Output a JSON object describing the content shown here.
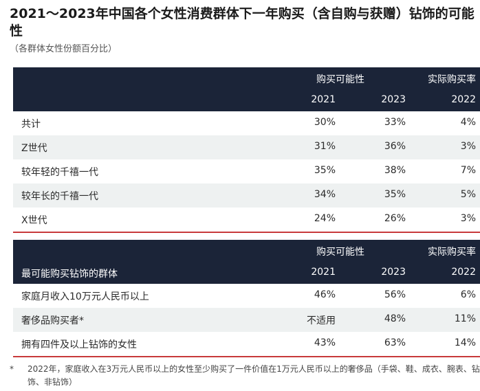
{
  "title": "2021～2023年中国各个女性消费群体下一年购买（含自购与获赠）钻饰的可能性",
  "subtitle": "（各群体女性份额百分比）",
  "table1": {
    "group_headers": [
      "购买可能性",
      "实际购买率"
    ],
    "first_col_header": "",
    "columns": [
      "2021",
      "2023",
      "2022"
    ],
    "rows": [
      {
        "label": "共计",
        "v": [
          "30%",
          "33%",
          "4%"
        ]
      },
      {
        "label": "Z世代",
        "v": [
          "31%",
          "36%",
          "3%"
        ]
      },
      {
        "label": "较年轻的千禧一代",
        "v": [
          "35%",
          "38%",
          "7%"
        ]
      },
      {
        "label": "较年长的千禧一代",
        "v": [
          "34%",
          "35%",
          "5%"
        ]
      },
      {
        "label": "X世代",
        "v": [
          "24%",
          "26%",
          "3%"
        ]
      }
    ]
  },
  "table2": {
    "group_headers": [
      "购买可能性",
      "实际购买率"
    ],
    "first_col_header": "最可能购买钻饰的群体",
    "columns": [
      "2021",
      "2023",
      "2022"
    ],
    "rows": [
      {
        "label": "家庭月收入10万元人民币以上",
        "v": [
          "46%",
          "56%",
          "6%"
        ]
      },
      {
        "label": "奢侈品购买者*",
        "v": [
          "不适用",
          "48%",
          "11%"
        ]
      },
      {
        "label": "拥有四件及以上钻饰的女性",
        "v": [
          "43%",
          "63%",
          "14%"
        ]
      }
    ]
  },
  "footnote": {
    "marker": "*",
    "text": "2022年，家庭收入在3万元人民币以上的女性至少购买了一件价值在1万元人民币以上的奢侈品（手袋、鞋、成衣、腕表、钻饰、非钻饰）"
  },
  "colors": {
    "header_bg": "#1b2438",
    "alt_row_bg": "#eef1f1",
    "accent_red": "#c8393a"
  }
}
